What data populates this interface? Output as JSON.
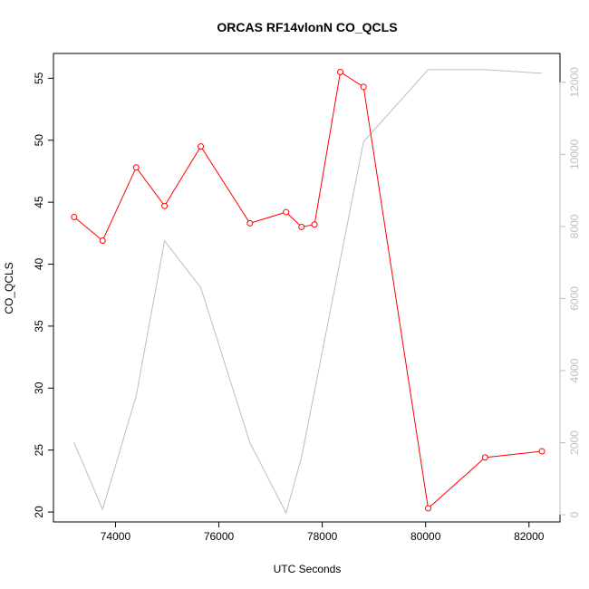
{
  "chart_data": {
    "type": "line",
    "title": "ORCAS RF14vlonN CO_QCLS",
    "xlabel": "UTC Seconds",
    "ylabel": "CO_QCLS",
    "xlim": [
      72800,
      82600
    ],
    "ylim": [
      19.2,
      57
    ],
    "y2lim": [
      -200,
      12800
    ],
    "x_ticks": [
      74000,
      76000,
      78000,
      80000,
      82000
    ],
    "y_ticks": [
      20,
      25,
      30,
      35,
      40,
      45,
      50,
      55
    ],
    "y2_ticks": [
      0,
      2000,
      4000,
      6000,
      8000,
      10000,
      12000
    ],
    "grid": false,
    "series": [
      {
        "axis": "left",
        "color": "#ff0000",
        "marker": "open-circle",
        "points": [
          [
            73200,
            43.8
          ],
          [
            73750,
            41.9
          ],
          [
            74400,
            47.8
          ],
          [
            74950,
            44.7
          ],
          [
            75650,
            49.5
          ],
          [
            76600,
            43.3
          ],
          [
            77300,
            44.2
          ],
          [
            77600,
            43.0
          ],
          [
            77850,
            43.2
          ],
          [
            78350,
            55.5
          ],
          [
            78800,
            54.3
          ],
          [
            80050,
            20.3
          ],
          [
            81150,
            24.4
          ],
          [
            82250,
            24.9
          ]
        ]
      },
      {
        "axis": "right",
        "color": "#bebebe",
        "marker": "none",
        "points": [
          [
            73200,
            2000
          ],
          [
            73750,
            150
          ],
          [
            74400,
            3300
          ],
          [
            74950,
            7600
          ],
          [
            75650,
            6300
          ],
          [
            76600,
            2000
          ],
          [
            77300,
            50
          ],
          [
            77600,
            1600
          ],
          [
            78800,
            10350
          ],
          [
            80050,
            12350
          ],
          [
            81150,
            12350
          ],
          [
            82250,
            12250
          ]
        ]
      }
    ]
  }
}
